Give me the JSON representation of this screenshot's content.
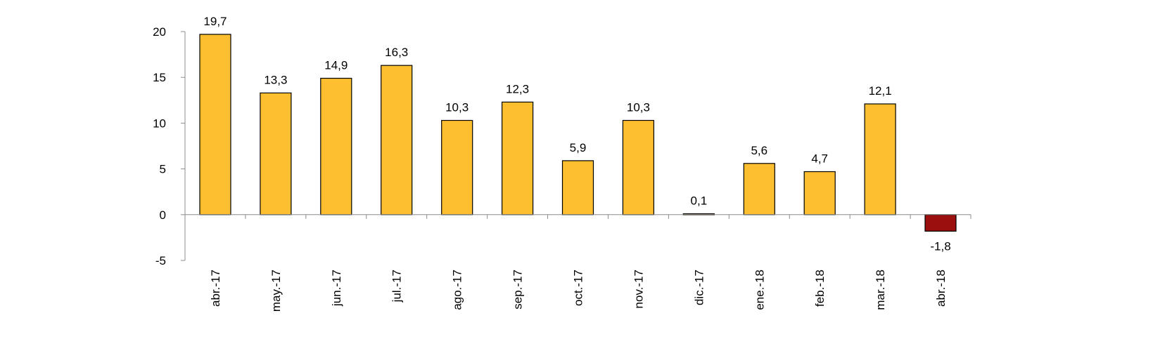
{
  "chart_data": {
    "type": "bar",
    "categories": [
      "abr.-17",
      "may.-17",
      "jun.-17",
      "jul.-17",
      "ago.-17",
      "sep.-17",
      "oct.-17",
      "nov.-17",
      "dic.-17",
      "ene.-18",
      "feb.-18",
      "mar.-18",
      "abr.-18"
    ],
    "values": [
      19.7,
      13.3,
      14.9,
      16.3,
      10.3,
      12.3,
      5.9,
      10.3,
      0.1,
      5.6,
      4.7,
      12.1,
      -1.8
    ],
    "data_labels": [
      "19,7",
      "13,3",
      "14,9",
      "16,3",
      "10,3",
      "12,3",
      "5,9",
      "10,3",
      "0,1",
      "5,6",
      "4,7",
      "12,1",
      "-1,8"
    ],
    "yticks": [
      20,
      15,
      10,
      5,
      0,
      -5
    ],
    "ytick_labels": [
      "20",
      "15",
      "10",
      "5",
      "0",
      "-5"
    ],
    "ylim": [
      -5,
      20
    ],
    "grid": false,
    "title": "",
    "xlabel": "",
    "ylabel": "",
    "colors": {
      "positive": "#FDBE30",
      "negative": "#9B0F0F",
      "outline": "#000000",
      "axis": "#8c8c8c"
    }
  }
}
